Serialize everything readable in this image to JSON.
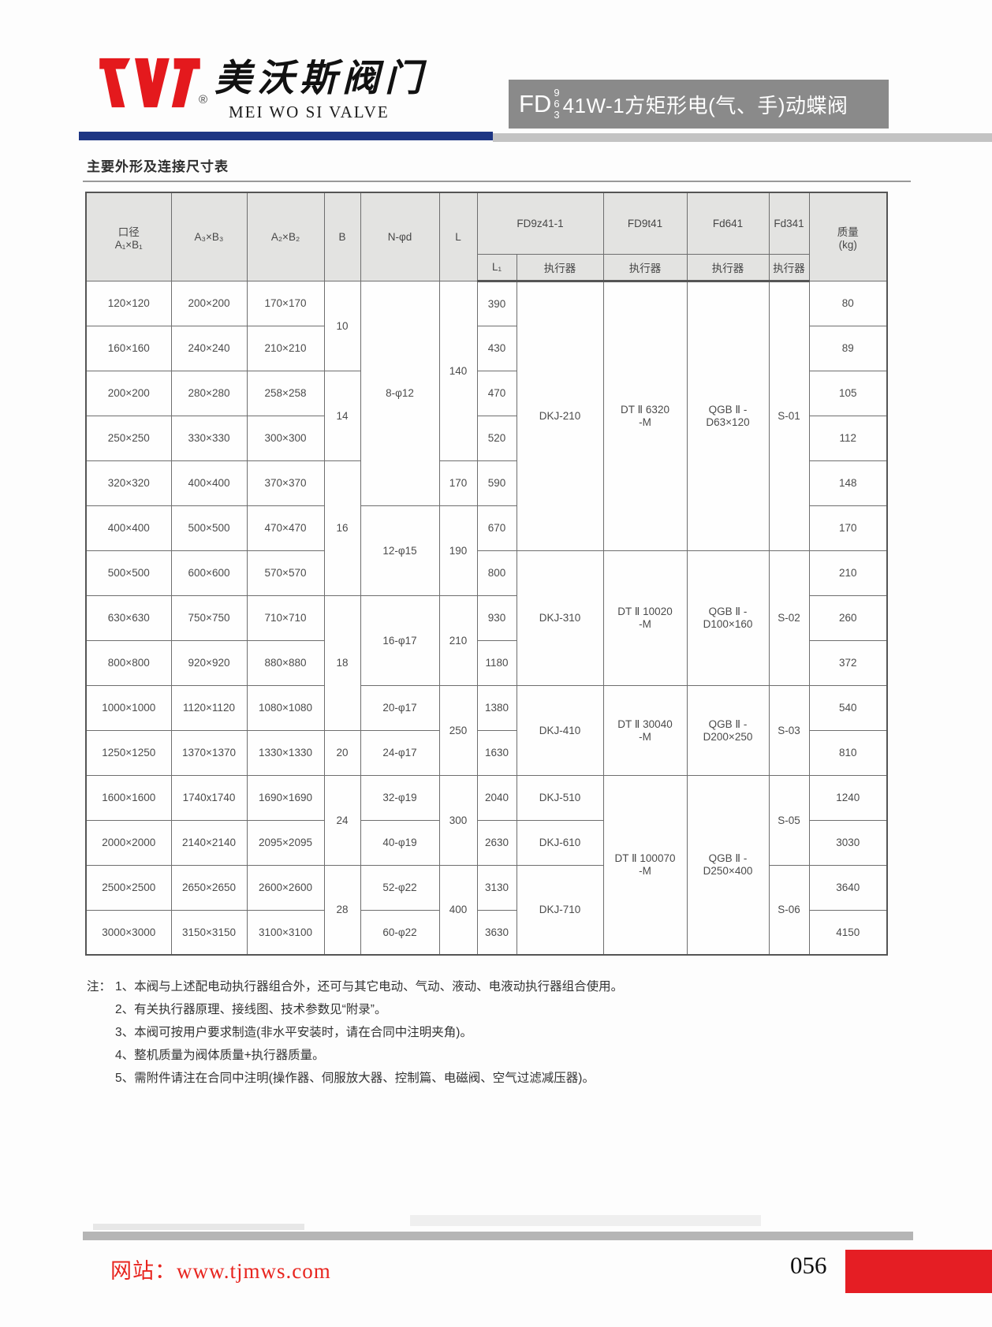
{
  "page": {
    "brand": {
      "registered": "®",
      "name_cn": "美沃斯阀门",
      "name_en": "MEI WO SI VALVE"
    },
    "model_badge": {
      "prefix": "FD",
      "digit_stack": [
        "9",
        "6",
        "3"
      ],
      "title": "41W-1方矩形电(气、手)动蝶阀"
    },
    "section_title": "主要外形及连接尺寸表"
  },
  "colors": {
    "brand_red": "#e4191d",
    "bar_blue": "#1d3583",
    "badge_gray": "#8a8a8a",
    "website_red": "#e8251f",
    "footer_red_block": "#e51e24"
  },
  "table": {
    "header": {
      "row1": [
        {
          "label": "口径\nA₁×B₁",
          "rowspan": 2
        },
        {
          "label": "A₃×B₃",
          "rowspan": 2
        },
        {
          "label": "A₂×B₂",
          "rowspan": 2
        },
        {
          "label": "B",
          "rowspan": 2
        },
        {
          "label": "N-φd",
          "rowspan": 2
        },
        {
          "label": "L",
          "rowspan": 2
        },
        {
          "label": "FD9z41-1",
          "colspan": 2
        },
        {
          "label": "FD9t41"
        },
        {
          "label": "Fd641"
        },
        {
          "label": "Fd341"
        },
        {
          "label": "质量\n(kg)",
          "rowspan": 2
        }
      ],
      "row2": [
        "L₁",
        "执行器",
        "执行器",
        "执行器",
        "执行器"
      ]
    },
    "bore": [
      "120×120",
      "160×160",
      "200×200",
      "250×250",
      "320×320",
      "400×400",
      "500×500",
      "630×630",
      "800×800",
      "1000×1000",
      "1250×1250",
      "1600×1600",
      "2000×2000",
      "2500×2500",
      "3000×3000"
    ],
    "a3b3": [
      "200×200",
      "240×240",
      "280×280",
      "330×330",
      "400×400",
      "500×500",
      "600×600",
      "750×750",
      "920×920",
      "1120×1120",
      "1370×1370",
      "1740x1740",
      "2140×2140",
      "2650×2650",
      "3150×3150"
    ],
    "a2b2": [
      "170×170",
      "210×210",
      "258×258",
      "300×300",
      "370×370",
      "470×470",
      "570×570",
      "710×710",
      "880×880",
      "1080×1080",
      "1330×1330",
      "1690×1690",
      "2095×2095",
      "2600×2600",
      "3100×3100"
    ],
    "b": [
      {
        "value": "10",
        "rows": 2
      },
      {
        "value": "14",
        "rows": 2
      },
      {
        "value": "16",
        "rows": 3
      },
      {
        "value": "18",
        "rows": 3
      },
      {
        "value": "20",
        "rows": 1
      },
      {
        "value": "24",
        "rows": 2
      },
      {
        "value": "28",
        "rows": 2
      }
    ],
    "n_phi_d": [
      {
        "value": "8-φ12",
        "rows": 5
      },
      {
        "value": "12-φ15",
        "rows": 2
      },
      {
        "value": "16-φ17",
        "rows": 2
      },
      {
        "value": "20-φ17",
        "rows": 1
      },
      {
        "value": "24-φ17",
        "rows": 1
      },
      {
        "value": "32-φ19",
        "rows": 1
      },
      {
        "value": "40-φ19",
        "rows": 1
      },
      {
        "value": "52-φ22",
        "rows": 1
      },
      {
        "value": "60-φ22",
        "rows": 1
      }
    ],
    "l": [
      {
        "value": "140",
        "rows": 4
      },
      {
        "value": "170",
        "rows": 1
      },
      {
        "value": "190",
        "rows": 2
      },
      {
        "value": "210",
        "rows": 2
      },
      {
        "value": "250",
        "rows": 2
      },
      {
        "value": "300",
        "rows": 2
      },
      {
        "value": "400",
        "rows": 2
      }
    ],
    "l1": [
      "390",
      "430",
      "470",
      "520",
      "590",
      "670",
      "800",
      "930",
      "1180",
      "1380",
      "1630",
      "2040",
      "2630",
      "3130",
      "3630"
    ],
    "fd9z41": [
      {
        "value": "DKJ-210",
        "rows": 6
      },
      {
        "value": "DKJ-310",
        "rows": 3
      },
      {
        "value": "DKJ-410",
        "rows": 2
      },
      {
        "value": "DKJ-510",
        "rows": 1
      },
      {
        "value": "DKJ-610",
        "rows": 1
      },
      {
        "value": "DKJ-710",
        "rows": 2
      }
    ],
    "fd9t41": [
      {
        "value": "DT Ⅱ 6320\n-M",
        "rows": 6
      },
      {
        "value": "DT Ⅱ 10020\n-M",
        "rows": 3
      },
      {
        "value": "DT Ⅱ 30040\n-M",
        "rows": 2
      },
      {
        "value": "DT Ⅱ 100070\n-M",
        "rows": 4
      }
    ],
    "fd641": [
      {
        "value": "QGB Ⅱ -\nD63×120",
        "rows": 6
      },
      {
        "value": "QGB Ⅱ -\nD100×160",
        "rows": 3
      },
      {
        "value": "QGB Ⅱ -\nD200×250",
        "rows": 2
      },
      {
        "value": "QGB Ⅱ -\nD250×400",
        "rows": 4
      }
    ],
    "fd341": [
      {
        "value": "S-01",
        "rows": 6
      },
      {
        "value": "S-02",
        "rows": 3
      },
      {
        "value": "S-03",
        "rows": 2
      },
      {
        "value": "S-05",
        "rows": 2
      },
      {
        "value": "S-06",
        "rows": 2
      }
    ],
    "weight": [
      "80",
      "89",
      "105",
      "112",
      "148",
      "170",
      "210",
      "260",
      "372",
      "540",
      "810",
      "1240",
      "3030",
      "3640",
      "4150"
    ]
  },
  "notes": {
    "prefix": "注：",
    "items": [
      "1、本阀与上述配电动执行器组合外，还可与其它电动、气动、液动、电液动执行器组合使用。",
      "2、有关执行器原理、接线图、技术参数见“附录”。",
      "3、本阀可按用户要求制造(非水平安装时，请在合同中注明夹角)。",
      "4、整机质量为阀体质量+执行器质量。",
      "5、需附件请注在合同中注明(操作器、伺服放大器、控制篇、电磁阀、空气过滤减压器)。"
    ]
  },
  "footer": {
    "website": "网站：www.tjmws.com",
    "page_number": "056"
  }
}
